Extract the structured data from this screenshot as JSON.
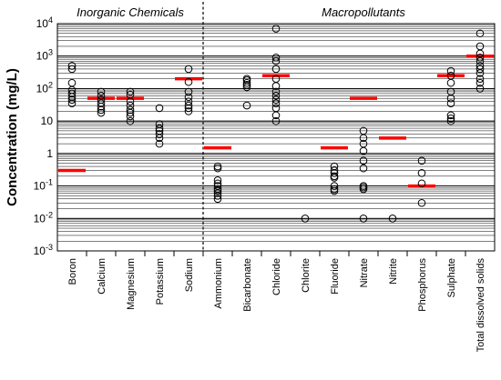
{
  "chart_data": {
    "type": "scatter",
    "title": "",
    "xlabel": "",
    "ylabel": "Concentration (mg/L)",
    "yscale": "log",
    "ylim": [
      0.001,
      10000
    ],
    "yticks": [
      {
        "value": 10000,
        "base": "10",
        "exp": "4"
      },
      {
        "value": 1000,
        "base": "10",
        "exp": "3"
      },
      {
        "value": 100,
        "base": "10",
        "exp": "2"
      },
      {
        "value": 10,
        "base": "10",
        "exp": ""
      },
      {
        "value": 1,
        "base": "1",
        "exp": ""
      },
      {
        "value": 0.1,
        "base": "10",
        "exp": "-1"
      },
      {
        "value": 0.01,
        "base": "10",
        "exp": "-2"
      },
      {
        "value": 0.001,
        "base": "10",
        "exp": "-3"
      }
    ],
    "grid": true,
    "groups": [
      {
        "label": "Inorganic Chemicals",
        "span": [
          0,
          4
        ]
      },
      {
        "label": "Macropollutants",
        "span": [
          5,
          15
        ]
      }
    ],
    "colors": {
      "marker": "#000000",
      "guideline": "#ff0000",
      "grid": "#000000"
    },
    "categories": [
      {
        "name": "Boron",
        "guideline": 0.3,
        "points": [
          500,
          400,
          150,
          90,
          70,
          55,
          45,
          35
        ]
      },
      {
        "name": "Calcium",
        "guideline": 50,
        "points": [
          80,
          60,
          45,
          35,
          28,
          22,
          18
        ]
      },
      {
        "name": "Magnesium",
        "guideline": 50,
        "points": [
          80,
          65,
          40,
          30,
          22,
          18,
          14,
          10
        ]
      },
      {
        "name": "Potassium",
        "guideline": null,
        "points": [
          25,
          8,
          6,
          5,
          4,
          3,
          2
        ]
      },
      {
        "name": "Sodium",
        "guideline": 200,
        "points": [
          400,
          160,
          80,
          55,
          40,
          30,
          25,
          20
        ]
      },
      {
        "name": "Ammonium",
        "guideline": 1.5,
        "points": [
          0.4,
          0.35,
          0.15,
          0.12,
          0.1,
          0.08,
          0.07,
          0.06,
          0.05,
          0.04
        ]
      },
      {
        "name": "Bicarbonate",
        "guideline": null,
        "points": [
          200,
          180,
          150,
          130,
          110,
          30
        ]
      },
      {
        "name": "Chloride",
        "guideline": 250,
        "points": [
          7000,
          900,
          700,
          400,
          200,
          120,
          80,
          60,
          45,
          35,
          25,
          15,
          10
        ]
      },
      {
        "name": "Chlorite",
        "guideline": null,
        "points": [
          0.01
        ]
      },
      {
        "name": "Fluoride",
        "guideline": 1.5,
        "points": [
          0.4,
          0.3,
          0.25,
          0.2,
          0.18,
          0.1,
          0.08,
          0.07
        ]
      },
      {
        "name": "Nitrate",
        "guideline": 50,
        "points": [
          5,
          3,
          2,
          1.2,
          0.6,
          0.35,
          0.1,
          0.09,
          0.08,
          0.01
        ]
      },
      {
        "name": "Nitrite",
        "guideline": 3,
        "points": [
          0.01
        ]
      },
      {
        "name": "Phosphorus",
        "guideline": 0.1,
        "points": [
          0.6,
          0.25,
          0.12,
          0.03
        ]
      },
      {
        "name": "Sulphate",
        "guideline": 250,
        "points": [
          350,
          250,
          150,
          80,
          50,
          35,
          15,
          12,
          10
        ]
      },
      {
        "name": "Total dissolved solids",
        "guideline": 1000,
        "points": [
          5000,
          2000,
          1200,
          900,
          700,
          500,
          400,
          300,
          200,
          150,
          100
        ]
      }
    ]
  }
}
